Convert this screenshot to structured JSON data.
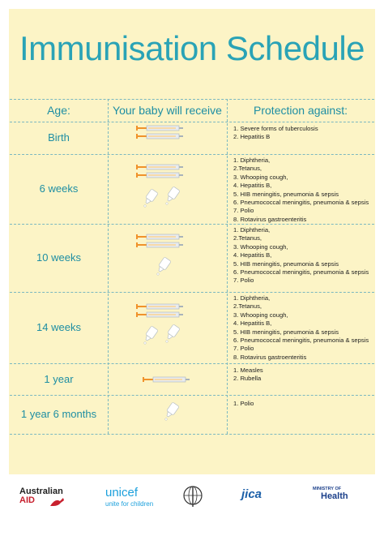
{
  "header": {
    "title": "Immunisation Schedule"
  },
  "table": {
    "columns": [
      "Age:",
      "Your baby will receive",
      "Protection against:"
    ],
    "rows": [
      {
        "age": "Birth",
        "protection": [
          "1. Severe forms of tuberculosis",
          "2. Hepatitis B"
        ]
      },
      {
        "age": "6 weeks",
        "protection": [
          "1. Diphtheria,",
          "2.Tetanus,",
          "3. Whooping cough,",
          "4. Hepatitis B,",
          "5. HIB meningitis, pneumonia & sepsis",
          "6. Pneumococcal meningitis, pneumonia & sepsis",
          "7. Polio",
          "8. Rotavirus gastroenteritis"
        ]
      },
      {
        "age": "10 weeks",
        "protection": [
          "1. Diphtheria,",
          "2.Tetanus,",
          "3. Whooping cough,",
          "4. Hepatitis B,",
          "5. HIB meningitis, pneumonia & sepsis",
          "6. Pneumococcal meningitis, pneumonia & sepsis",
          "7. Polio"
        ]
      },
      {
        "age": "14 weeks",
        "protection": [
          "1. Diphtheria,",
          "2.Tetanus,",
          "3. Whooping cough,",
          "4. Hepatitis B,",
          "5. HIB meningitis, pneumonia & sepsis",
          "6. Pneumococcal meningitis, pneumonia & sepsis",
          "7. Polio",
          "8. Rotavirus gastroenteritis"
        ]
      },
      {
        "age": "1 year",
        "protection": [
          "1. Measles",
          "2. Rubella"
        ]
      },
      {
        "age": "1 year 6 months",
        "protection": [
          "1. Polio"
        ]
      }
    ]
  },
  "footer": {
    "logos": [
      "Australian",
      "AID",
      "unicef",
      "unite for children",
      "JICA",
      "MINISTRY OF",
      "Health"
    ]
  }
}
